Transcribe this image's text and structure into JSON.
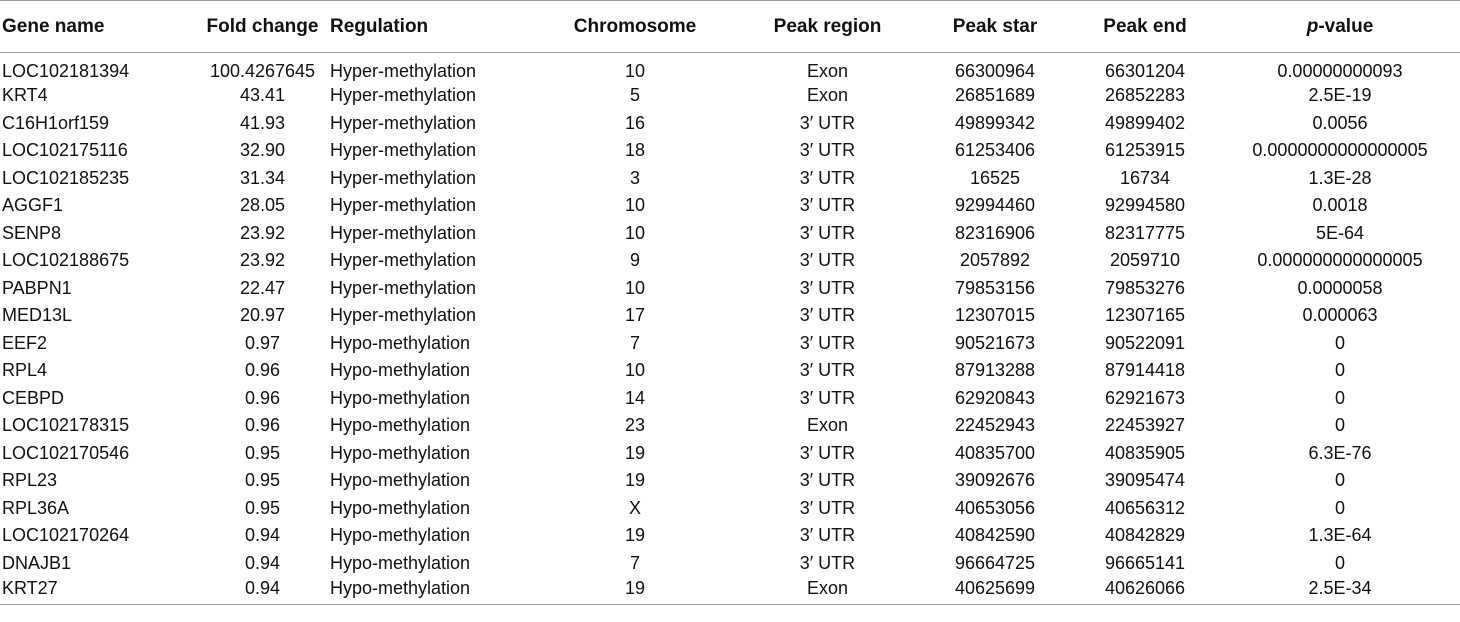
{
  "table": {
    "headers": {
      "gene_name": "Gene name",
      "fold_change": "Fold change",
      "regulation": "Regulation",
      "chromosome": "Chromosome",
      "peak_region": "Peak region",
      "peak_star": "Peak star",
      "peak_end": "Peak end",
      "p_value_italic": "p",
      "p_value_rest": "-value"
    },
    "rows": [
      [
        "LOC102181394",
        "100.4267645",
        "Hyper-methylation",
        "10",
        "Exon",
        "66300964",
        "66301204",
        "0.00000000093"
      ],
      [
        "KRT4",
        "43.41",
        "Hyper-methylation",
        "5",
        "Exon",
        "26851689",
        "26852283",
        "2.5E-19"
      ],
      [
        "C16H1orf159",
        "41.93",
        "Hyper-methylation",
        "16",
        "3′ UTR",
        "49899342",
        "49899402",
        "0.0056"
      ],
      [
        "LOC102175116",
        "32.90",
        "Hyper-methylation",
        "18",
        "3′ UTR",
        "61253406",
        "61253915",
        "0.0000000000000005"
      ],
      [
        "LOC102185235",
        "31.34",
        "Hyper-methylation",
        "3",
        "3′ UTR",
        "16525",
        "16734",
        "1.3E-28"
      ],
      [
        "AGGF1",
        "28.05",
        "Hyper-methylation",
        "10",
        "3′ UTR",
        "92994460",
        "92994580",
        "0.0018"
      ],
      [
        "SENP8",
        "23.92",
        "Hyper-methylation",
        "10",
        "3′ UTR",
        "82316906",
        "82317775",
        "5E-64"
      ],
      [
        "LOC102188675",
        "23.92",
        "Hyper-methylation",
        "9",
        "3′ UTR",
        "2057892",
        "2059710",
        "0.000000000000005"
      ],
      [
        "PABPN1",
        "22.47",
        "Hyper-methylation",
        "10",
        "3′ UTR",
        "79853156",
        "79853276",
        "0.0000058"
      ],
      [
        "MED13L",
        "20.97",
        "Hyper-methylation",
        "17",
        "3′ UTR",
        "12307015",
        "12307165",
        "0.000063"
      ],
      [
        "EEF2",
        "0.97",
        "Hypo-methylation",
        "7",
        "3′ UTR",
        "90521673",
        "90522091",
        "0"
      ],
      [
        "RPL4",
        "0.96",
        "Hypo-methylation",
        "10",
        "3′ UTR",
        "87913288",
        "87914418",
        "0"
      ],
      [
        "CEBPD",
        "0.96",
        "Hypo-methylation",
        "14",
        "3′ UTR",
        "62920843",
        "62921673",
        "0"
      ],
      [
        "LOC102178315",
        "0.96",
        "Hypo-methylation",
        "23",
        "Exon",
        "22452943",
        "22453927",
        "0"
      ],
      [
        "LOC102170546",
        "0.95",
        "Hypo-methylation",
        "19",
        "3′ UTR",
        "40835700",
        "40835905",
        "6.3E-76"
      ],
      [
        "RPL23",
        "0.95",
        "Hypo-methylation",
        "19",
        "3′ UTR",
        "39092676",
        "39095474",
        "0"
      ],
      [
        "RPL36A",
        "0.95",
        "Hypo-methylation",
        "X",
        "3′ UTR",
        "40653056",
        "40656312",
        "0"
      ],
      [
        "LOC102170264",
        "0.94",
        "Hypo-methylation",
        "19",
        "3′ UTR",
        "40842590",
        "40842829",
        "1.3E-64"
      ],
      [
        "DNAJB1",
        "0.94",
        "Hypo-methylation",
        "7",
        "3′ UTR",
        "96664725",
        "96665141",
        "0"
      ],
      [
        "KRT27",
        "0.94",
        "Hypo-methylation",
        "19",
        "Exon",
        "40625699",
        "40626066",
        "2.5E-34"
      ]
    ]
  }
}
